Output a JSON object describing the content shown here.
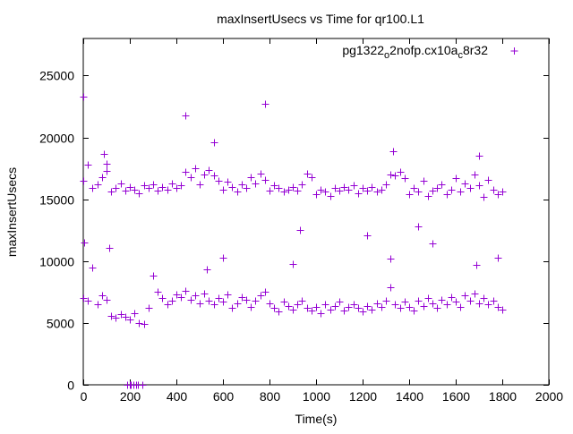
{
  "chart_data": {
    "type": "scatter",
    "title": "maxInsertUsecs vs Time for qr100.L1",
    "xlabel": "Time(s)",
    "ylabel": "maxInsertUsecs",
    "xlim": [
      0,
      2000
    ],
    "ylim": [
      0,
      28000
    ],
    "xticks": [
      0,
      200,
      400,
      600,
      800,
      1000,
      1200,
      1400,
      1600,
      1800,
      2000
    ],
    "yticks": [
      0,
      5000,
      10000,
      15000,
      20000,
      25000
    ],
    "grid": false,
    "legend_placement": "top-right",
    "legend_parts": [
      "pg1322",
      "o",
      "2nofp.cx10a",
      "c",
      "8r32"
    ],
    "series_color": "#9400d3",
    "series": [
      {
        "name": "pg1322_o2nofp.cx10a_c8r32",
        "band_x_step": 20,
        "upper_band": [
          16500,
          17800,
          15900,
          16200,
          16800,
          17300,
          15600,
          15900,
          16300,
          15700,
          16000,
          15800,
          15500,
          16100,
          15900,
          16200,
          15700,
          16000,
          15800,
          16300,
          15900,
          16100,
          17200,
          16800,
          17500,
          16200,
          17000,
          17400,
          16900,
          16500,
          15800,
          16400,
          16000,
          15600,
          16200,
          15900,
          16800,
          16300,
          17100,
          16600,
          15700,
          16100,
          15900,
          15600,
          15800,
          16000,
          15700,
          16200,
          17100,
          16800,
          15400,
          15800,
          15600,
          15300,
          15900,
          15700,
          16000,
          15800,
          16100,
          15500,
          15900,
          15700,
          16000,
          15600,
          15800,
          16200,
          17000,
          16900,
          17200,
          16700,
          15400,
          15900,
          15600,
          16500,
          15300,
          15700,
          15900,
          16200,
          15400,
          15800,
          16700,
          15600,
          16300,
          15900,
          17000,
          16100,
          15200,
          16600,
          15800,
          15400,
          15600
        ],
        "lower_band": [
          7000,
          6800,
          9500,
          6500,
          7200,
          6900,
          5600,
          5400,
          5700,
          5500,
          5300,
          5800,
          5000,
          4900,
          6200,
          8800,
          7500,
          7000,
          6500,
          6800,
          7300,
          7100,
          7600,
          6900,
          7200,
          6600,
          7400,
          6800,
          6500,
          7000,
          6700,
          7300,
          6200,
          6600,
          7100,
          6900,
          6300,
          6800,
          7200,
          7500,
          6600,
          6200,
          5900,
          6700,
          6400,
          6100,
          6500,
          6800,
          6200,
          6000,
          6300,
          5800,
          6500,
          6100,
          6400,
          6700,
          6000,
          6300,
          6500,
          6200,
          5900,
          6400,
          6100,
          6600,
          6300,
          6800,
          7900,
          6500,
          6200,
          6700,
          6300,
          6000,
          6800,
          6400,
          7000,
          6600,
          6200,
          6900,
          6500,
          7100,
          6700,
          6300,
          7200,
          6800,
          7400,
          6600,
          7000,
          6500,
          6800,
          6300,
          6100
        ],
        "extra_points": [
          [
            0,
            23300
          ],
          [
            5,
            11500
          ],
          [
            440,
            21800
          ],
          [
            780,
            22700
          ],
          [
            560,
            19600
          ],
          [
            1330,
            18900
          ],
          [
            1700,
            18500
          ],
          [
            1440,
            12800
          ],
          [
            1220,
            12100
          ],
          [
            930,
            12500
          ],
          [
            900,
            9800
          ],
          [
            110,
            11100
          ],
          [
            600,
            10300
          ],
          [
            1780,
            10300
          ],
          [
            1320,
            10200
          ],
          [
            1500,
            11400
          ],
          [
            1690,
            9700
          ],
          [
            530,
            9300
          ],
          [
            100,
            17900
          ],
          [
            90,
            18700
          ],
          [
            190,
            0
          ],
          [
            200,
            0
          ],
          [
            205,
            0
          ],
          [
            215,
            0
          ],
          [
            225,
            0
          ],
          [
            235,
            0
          ],
          [
            255,
            0
          ]
        ]
      }
    ]
  }
}
